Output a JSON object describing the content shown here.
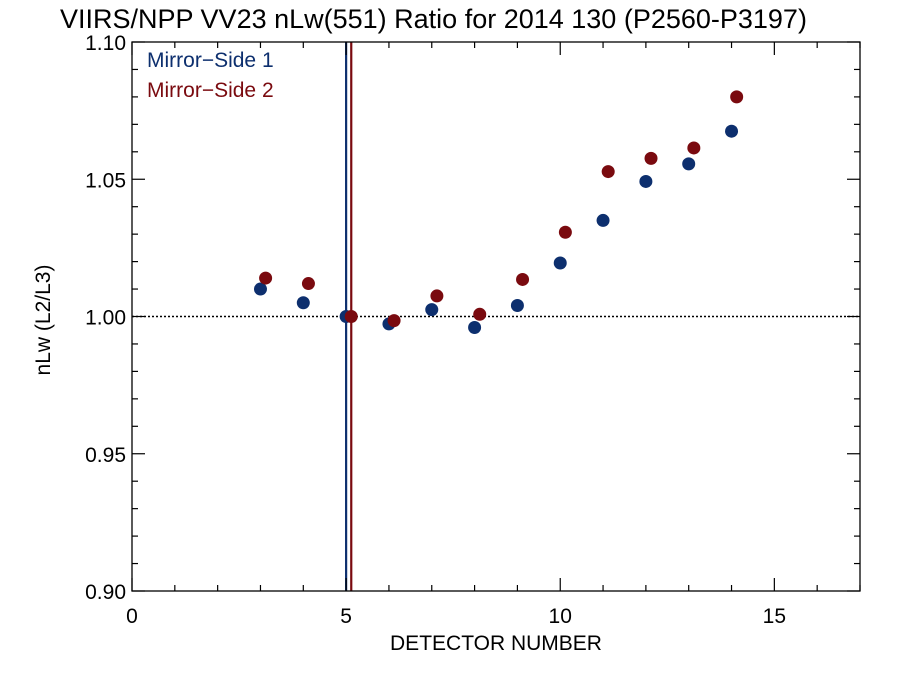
{
  "chart_data": {
    "type": "scatter",
    "title": "VIIRS/NPP VV23 nLw(551) Ratio for 2014 130 (P2560-P3197)",
    "xlabel": "DETECTOR NUMBER",
    "ylabel": "nLw (L2/L3)",
    "xlim": [
      0,
      17
    ],
    "ylim": [
      0.9,
      1.1
    ],
    "x_ticks": [
      0,
      5,
      10,
      15
    ],
    "x_tick_labels": [
      "0",
      "5",
      "10",
      "15"
    ],
    "y_ticks": [
      0.9,
      0.95,
      1.0,
      1.05,
      1.1
    ],
    "y_tick_labels": [
      "0.90",
      "0.95",
      "1.00",
      "1.05",
      "1.10"
    ],
    "reference_line_y": 1.0,
    "legend_position": "top-left",
    "series": [
      {
        "name": "Mirror−Side 1",
        "color": "#0d2f6e",
        "vline_x": 5.0,
        "points": [
          {
            "x": 3.0,
            "y": 1.01
          },
          {
            "x": 4.0,
            "y": 1.005
          },
          {
            "x": 5.0,
            "y": 1.0
          },
          {
            "x": 6.0,
            "y": 0.9973
          },
          {
            "x": 7.0,
            "y": 1.0025
          },
          {
            "x": 8.0,
            "y": 0.996
          },
          {
            "x": 9.0,
            "y": 1.004
          },
          {
            "x": 10.0,
            "y": 1.0195
          },
          {
            "x": 11.0,
            "y": 1.035
          },
          {
            "x": 12.0,
            "y": 1.0492
          },
          {
            "x": 13.0,
            "y": 1.0556
          },
          {
            "x": 14.0,
            "y": 1.0675
          }
        ]
      },
      {
        "name": "Mirror−Side 2",
        "color": "#7a0a0f",
        "vline_x": 5.12,
        "points": [
          {
            "x": 3.12,
            "y": 1.014
          },
          {
            "x": 4.12,
            "y": 1.012
          },
          {
            "x": 5.12,
            "y": 1.0
          },
          {
            "x": 6.12,
            "y": 0.9985
          },
          {
            "x": 7.12,
            "y": 1.0075
          },
          {
            "x": 8.12,
            "y": 1.0008
          },
          {
            "x": 9.12,
            "y": 1.0135
          },
          {
            "x": 10.12,
            "y": 1.0307
          },
          {
            "x": 11.12,
            "y": 1.0528
          },
          {
            "x": 12.12,
            "y": 1.0576
          },
          {
            "x": 13.12,
            "y": 1.0614
          },
          {
            "x": 14.12,
            "y": 1.08
          }
        ]
      }
    ]
  }
}
